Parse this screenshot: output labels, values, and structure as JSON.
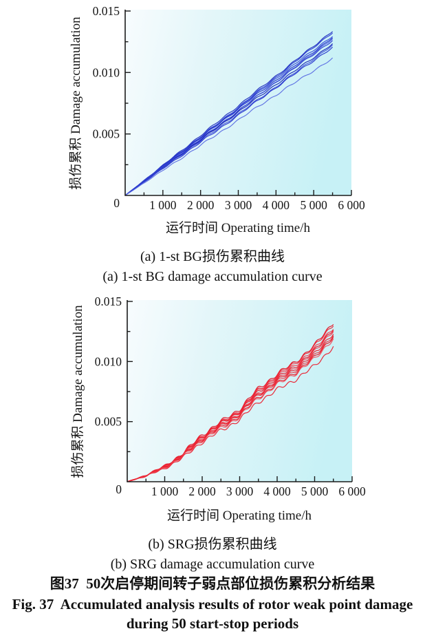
{
  "page": {
    "background": "#ffffff"
  },
  "captions": {
    "a_zh": "(a) 1-st BG损伤累积曲线",
    "a_en": "(a) 1-st BG damage accumulation curve",
    "b_zh": "(b) SRG损伤累积曲线",
    "b_en": "(b) SRG damage accumulation curve",
    "fig_zh": "图37  50次启停期间转子弱点部位损伤累积分析结果",
    "fig_en_line1": "Fig. 37  Accumulated analysis results of rotor weak point damage",
    "fig_en_line2": "during 50 start-stop periods"
  },
  "colors": {
    "axis": "#1a1a1a",
    "text": "#161616",
    "plot_bg_gradient": [
      "#f8fcfe",
      "#e3f6f9",
      "#c7f1f6"
    ],
    "blue_lines": [
      "#1b2abf",
      "#2838cd",
      "#3346d6",
      "#1f2ec6",
      "#4a5cdc",
      "#2b3ad1",
      "#1621b0",
      "#3d4fd9",
      "#2433cb",
      "#5a6ce2"
    ],
    "red_lines": [
      "#e31122",
      "#ef2434",
      "#f23848",
      "#e61525",
      "#f04352",
      "#e81827",
      "#ed2d3c",
      "#e51320",
      "#f14e5c",
      "#ea1f2e"
    ]
  },
  "chart_data": [
    {
      "type": "line",
      "name": "1-st BG damage accumulation",
      "xlabel": "运行时间 Operating time/h",
      "ylabel": "损伤累积 Damage accumulation",
      "xlim": [
        0,
        6000
      ],
      "ylim": [
        0,
        0.015
      ],
      "x_ticks": [
        1000,
        2000,
        3000,
        4000,
        5000,
        6000
      ],
      "x_minor_step": 500,
      "x_tick_labels": [
        "1 000",
        "2 000",
        "3 000",
        "4 000",
        "5 000",
        "6 000"
      ],
      "y_ticks": [
        0.005,
        0.01,
        0.015
      ],
      "y_minor_step": 0.0025,
      "y_tick_labels": [
        "0.005",
        "0.010",
        "0.015"
      ],
      "origin_label": "0",
      "grid": false,
      "legend": false,
      "line_style": "nearly straight bundle of 10 curves",
      "x": [
        0,
        500,
        1000,
        1500,
        2000,
        2500,
        3000,
        3500,
        4000,
        4500,
        5000,
        5500
      ],
      "series": [
        {
          "name": "curve-1",
          "values": [
            0,
            0.00122,
            0.00244,
            0.00364,
            0.00486,
            0.00607,
            0.0073,
            0.00855,
            0.00976,
            0.01099,
            0.01219,
            0.0134
          ]
        },
        {
          "name": "curve-2",
          "values": [
            0,
            0.0012,
            0.0024,
            0.00359,
            0.00479,
            0.00598,
            0.00719,
            0.00842,
            0.00961,
            0.01082,
            0.01201,
            0.0132
          ]
        },
        {
          "name": "curve-3",
          "values": [
            0,
            0.00118,
            0.00237,
            0.00354,
            0.00472,
            0.00589,
            0.00709,
            0.00829,
            0.00946,
            0.01066,
            0.01183,
            0.013
          ]
        },
        {
          "name": "curve-4",
          "values": [
            0,
            0.00117,
            0.00235,
            0.00351,
            0.00468,
            0.00584,
            0.00703,
            0.00823,
            0.00939,
            0.01058,
            0.01174,
            0.0129
          ]
        },
        {
          "name": "curve-5",
          "values": [
            0,
            0.00116,
            0.00231,
            0.00345,
            0.00461,
            0.00575,
            0.00692,
            0.0081,
            0.00925,
            0.01041,
            0.01156,
            0.0127
          ]
        },
        {
          "name": "curve-6",
          "values": [
            0,
            0.00115,
            0.00229,
            0.00343,
            0.00457,
            0.00571,
            0.00687,
            0.00804,
            0.00917,
            0.01033,
            0.01147,
            0.0126
          ]
        },
        {
          "name": "curve-7",
          "values": [
            0,
            0.00113,
            0.00226,
            0.00337,
            0.0045,
            0.00562,
            0.00676,
            0.00791,
            0.00903,
            0.01017,
            0.01128,
            0.0124
          ]
        },
        {
          "name": "curve-8",
          "values": [
            0,
            0.00111,
            0.00222,
            0.00332,
            0.00443,
            0.00553,
            0.00665,
            0.00778,
            0.00888,
            0.01,
            0.0111,
            0.0122
          ]
        },
        {
          "name": "curve-9",
          "values": [
            0,
            0.00109,
            0.00218,
            0.00326,
            0.00436,
            0.00544,
            0.00654,
            0.00766,
            0.00874,
            0.00984,
            0.01092,
            0.012
          ]
        },
        {
          "name": "curve-10",
          "values": [
            0,
            0.00102,
            0.00204,
            0.00305,
            0.00407,
            0.00507,
            0.0061,
            0.00715,
            0.00815,
            0.00918,
            0.01019,
            0.0112
          ]
        }
      ]
    },
    {
      "type": "line",
      "name": "SRG damage accumulation",
      "xlabel": "运行时间 Operating time/h",
      "ylabel": "损伤累积 Damage accumulation",
      "xlim": [
        0,
        6000
      ],
      "ylim": [
        0,
        0.015
      ],
      "x_ticks": [
        1000,
        2000,
        3000,
        4000,
        5000,
        6000
      ],
      "x_minor_step": 500,
      "x_tick_labels": [
        "1 000",
        "2 000",
        "3 000",
        "4 000",
        "5 000",
        "6 000"
      ],
      "y_ticks": [
        0.005,
        0.01,
        0.015
      ],
      "y_minor_step": 0.0025,
      "y_tick_labels": [
        "0.005",
        "0.010",
        "0.015"
      ],
      "origin_label": "0",
      "grid": false,
      "legend": false,
      "line_style": "wavy step-like bundle of 10 curves",
      "x": [
        0,
        500,
        1000,
        1500,
        2000,
        2500,
        3000,
        3500,
        4000,
        4500,
        5000,
        5500
      ],
      "series": [
        {
          "name": "curve-1",
          "values": [
            0,
            0.00055,
            0.0013,
            0.00238,
            0.0039,
            0.00497,
            0.00605,
            0.00778,
            0.00898,
            0.01005,
            0.01136,
            0.0133
          ]
        },
        {
          "name": "curve-2",
          "values": [
            0,
            0.00054,
            0.00128,
            0.00234,
            0.00384,
            0.0049,
            0.00596,
            0.00766,
            0.00884,
            0.0099,
            0.01119,
            0.0131
          ]
        },
        {
          "name": "curve-3",
          "values": [
            0,
            0.00053,
            0.00126,
            0.00231,
            0.00378,
            0.00482,
            0.00587,
            0.00755,
            0.00871,
            0.00975,
            0.01102,
            0.0129
          ]
        },
        {
          "name": "curve-4",
          "values": [
            0,
            0.00052,
            0.00125,
            0.00229,
            0.00375,
            0.00479,
            0.00582,
            0.00749,
            0.00864,
            0.00968,
            0.01093,
            0.0128
          ]
        },
        {
          "name": "curve-5",
          "values": [
            0,
            0.00052,
            0.00123,
            0.00226,
            0.00369,
            0.00471,
            0.00573,
            0.00737,
            0.00851,
            0.00953,
            0.01076,
            0.0126
          ]
        },
        {
          "name": "curve-6",
          "values": [
            0,
            0.00051,
            0.00122,
            0.00222,
            0.00363,
            0.00464,
            0.00564,
            0.00725,
            0.00837,
            0.00937,
            0.01059,
            0.0124
          ]
        },
        {
          "name": "curve-7",
          "values": [
            0,
            0.0005,
            0.00121,
            0.0022,
            0.0036,
            0.0046,
            0.0056,
            0.0072,
            0.0083,
            0.0093,
            0.0105,
            0.0123
          ]
        },
        {
          "name": "curve-8",
          "values": [
            0,
            0.0005,
            0.00119,
            0.00217,
            0.00354,
            0.00453,
            0.00551,
            0.00708,
            0.00817,
            0.00915,
            0.01033,
            0.0121
          ]
        },
        {
          "name": "curve-9",
          "values": [
            0,
            0.00049,
            0.00117,
            0.00213,
            0.00349,
            0.00445,
            0.00541,
            0.00696,
            0.00803,
            0.009,
            0.01016,
            0.0119
          ]
        },
        {
          "name": "curve-10",
          "values": [
            0,
            0.00046,
            0.00111,
            0.00202,
            0.00331,
            0.00423,
            0.00514,
            0.00661,
            0.00763,
            0.00854,
            0.00965,
            0.0113
          ]
        }
      ]
    }
  ]
}
